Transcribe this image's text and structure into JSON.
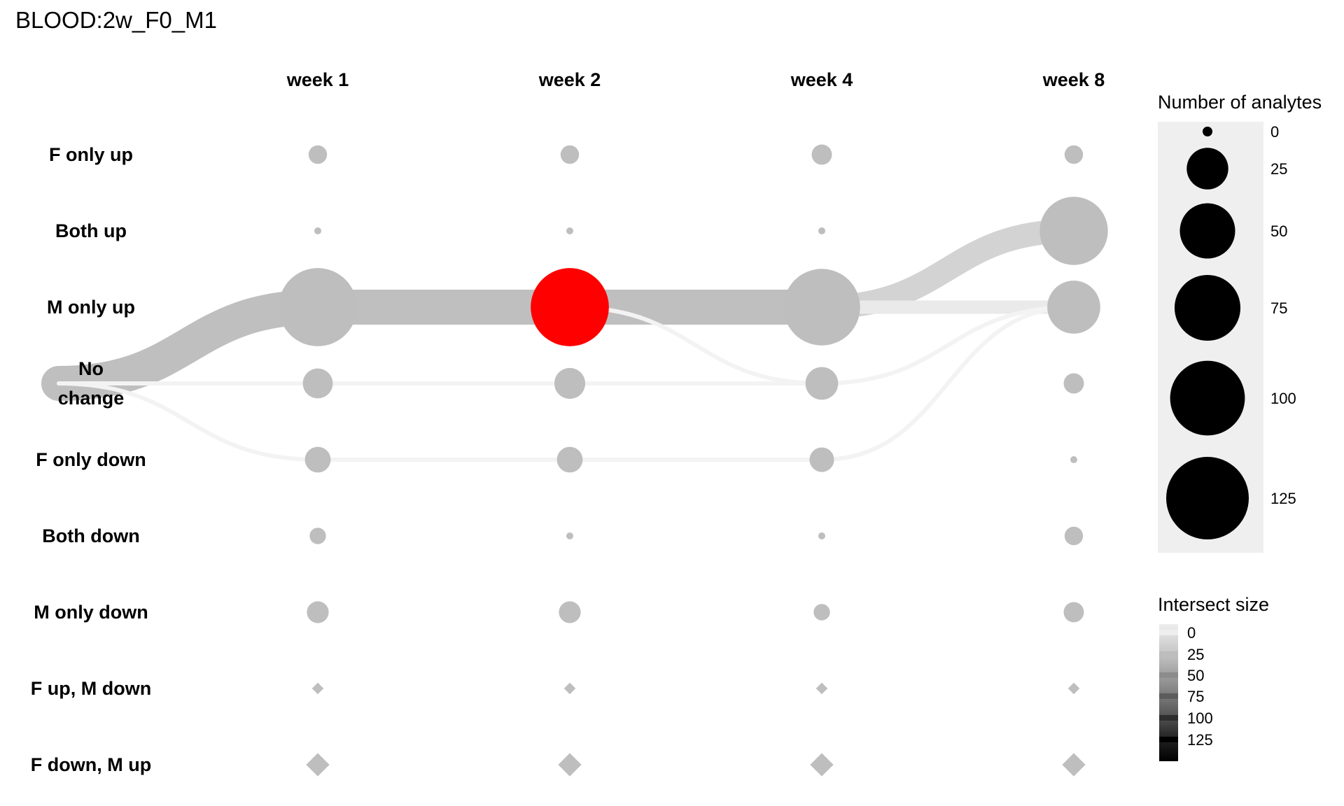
{
  "title": "BLOOD:2w_F0_M1",
  "chart_data": {
    "type": "flow-bubble",
    "columns": [
      "week 1",
      "week 2",
      "week 4",
      "week 8"
    ],
    "rows": [
      "F only up",
      "Both up",
      "M only up",
      "No change",
      "F only down",
      "Both down",
      "M only down",
      "F up, M down",
      "F down, M up"
    ],
    "node_shapes": [
      "circle",
      "circle",
      "circle",
      "circle",
      "circle",
      "circle",
      "circle",
      "diamond",
      "diamond"
    ],
    "node_counts": [
      [
        3,
        3,
        4,
        3
      ],
      [
        0,
        0,
        0,
        85
      ],
      [
        115,
        115,
        110,
        48
      ],
      [
        12,
        13,
        15,
        4
      ],
      [
        8,
        8,
        7,
        0
      ],
      [
        2,
        0,
        0,
        3
      ],
      [
        5,
        5,
        2,
        4
      ],
      [
        0,
        0,
        0,
        0
      ],
      [
        2,
        2,
        2,
        2
      ]
    ],
    "highlight_node": {
      "row": "M only up",
      "column": "week 2",
      "color": "#ff0000"
    },
    "node_color": "#bebebe",
    "start_node": {
      "row": "No change"
    },
    "flows": [
      {
        "from_row": "No change",
        "from_col": "start",
        "to_row": "M only up",
        "to_col": "week 1",
        "size": 40
      },
      {
        "from_row": "No change",
        "from_col": "start",
        "to_row": "No change",
        "to_col": "week 1",
        "size": 2
      },
      {
        "from_row": "No change",
        "from_col": "start",
        "to_row": "F only down",
        "to_col": "week 1",
        "size": 1
      },
      {
        "from_row": "M only up",
        "from_col": "week 1",
        "to_row": "M only up",
        "to_col": "week 2",
        "size": 40
      },
      {
        "from_row": "No change",
        "from_col": "week 1",
        "to_row": "No change",
        "to_col": "week 2",
        "size": 2
      },
      {
        "from_row": "F only down",
        "from_col": "week 1",
        "to_row": "F only down",
        "to_col": "week 2",
        "size": 1
      },
      {
        "from_row": "M only up",
        "from_col": "week 2",
        "to_row": "M only up",
        "to_col": "week 4",
        "size": 40
      },
      {
        "from_row": "M only up",
        "from_col": "week 2",
        "to_row": "No change",
        "to_col": "week 4",
        "size": 1
      },
      {
        "from_row": "No change",
        "from_col": "week 2",
        "to_row": "No change",
        "to_col": "week 4",
        "size": 1
      },
      {
        "from_row": "F only down",
        "from_col": "week 2",
        "to_row": "F only down",
        "to_col": "week 4",
        "size": 1
      },
      {
        "from_row": "M only up",
        "from_col": "week 4",
        "to_row": "Both up",
        "to_col": "week 8",
        "size": 22
      },
      {
        "from_row": "M only up",
        "from_col": "week 4",
        "to_row": "M only up",
        "to_col": "week 8",
        "size": 8
      },
      {
        "from_row": "No change",
        "from_col": "week 4",
        "to_row": "M only up",
        "to_col": "week 8",
        "size": 1
      },
      {
        "from_row": "F only down",
        "from_col": "week 4",
        "to_row": "M only up",
        "to_col": "week 8",
        "size": 1
      }
    ],
    "size_legend": {
      "title": "Number of analytes",
      "values": [
        0,
        25,
        50,
        75,
        100,
        125
      ],
      "labels": [
        "0",
        "25",
        "50",
        "75",
        "100",
        "125"
      ]
    },
    "intersect_legend": {
      "title": "Intersect size",
      "labels": [
        "0",
        "25",
        "50",
        "75",
        "100",
        "125"
      ],
      "colors": [
        "#eeeeee",
        "#bdbdbd",
        "#8c8c8c",
        "#5c5c5c",
        "#2e2e2e",
        "#000000"
      ]
    }
  }
}
